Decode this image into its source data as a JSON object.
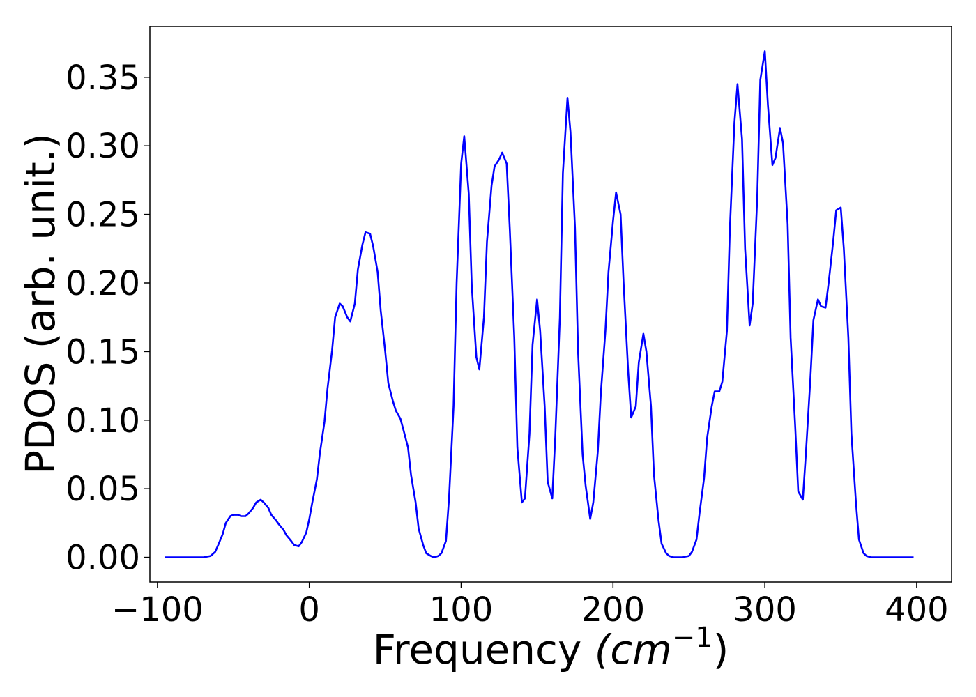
{
  "chart_data": {
    "type": "line",
    "title": "",
    "xlabel": "Frequency",
    "xlabel_unit": "(cm",
    "xlabel_sup": "−1",
    "xlabel_close": ")",
    "ylabel": "PDOS (arb. unit.)",
    "xlim": [
      -105,
      423
    ],
    "ylim": [
      -0.018,
      0.387
    ],
    "xticks": [
      -100,
      0,
      100,
      200,
      300,
      400
    ],
    "xtick_labels": [
      "−100",
      "0",
      "100",
      "200",
      "300",
      "400"
    ],
    "yticks": [
      0.0,
      0.05,
      0.1,
      0.15,
      0.2,
      0.25,
      0.3,
      0.35
    ],
    "ytick_labels": [
      "0.00",
      "0.05",
      "0.10",
      "0.15",
      "0.20",
      "0.25",
      "0.30",
      "0.35"
    ],
    "grid": false,
    "legend": "none",
    "series": [
      {
        "color": "#0000ff",
        "x": [
          -95,
          -70,
          -65,
          -62,
          -60,
          -57,
          -55,
          -52,
          -50,
          -47,
          -45,
          -42,
          -40,
          -37,
          -35,
          -32,
          -30,
          -27,
          -25,
          -22,
          -20,
          -17,
          -15,
          -12,
          -10,
          -7,
          -5,
          -2,
          0,
          2,
          5,
          7,
          10,
          12,
          15,
          17,
          20,
          22,
          25,
          27,
          30,
          32,
          35,
          37,
          40,
          42,
          45,
          47,
          50,
          52,
          55,
          57,
          60,
          62,
          65,
          67,
          70,
          72,
          75,
          77,
          80,
          82,
          85,
          87,
          90,
          92,
          95,
          97,
          100,
          102,
          105,
          107,
          110,
          112,
          115,
          117,
          120,
          122,
          125,
          127,
          130,
          132,
          135,
          137,
          140,
          142,
          145,
          147,
          150,
          152,
          155,
          157,
          160,
          162,
          165,
          167,
          170,
          172,
          175,
          177,
          180,
          182,
          185,
          187,
          190,
          192,
          195,
          197,
          200,
          202,
          205,
          207,
          210,
          212,
          215,
          217,
          220,
          222,
          225,
          227,
          230,
          232,
          235,
          237,
          240,
          245,
          250,
          252,
          255,
          257,
          260,
          262,
          265,
          267,
          270,
          272,
          275,
          277,
          280,
          282,
          285,
          287,
          290,
          292,
          295,
          297,
          300,
          302,
          305,
          307,
          310,
          312,
          315,
          317,
          320,
          322,
          325,
          327,
          330,
          332,
          335,
          337,
          340,
          342,
          345,
          347,
          350,
          352,
          355,
          357,
          360,
          362,
          365,
          367,
          370,
          380,
          398
        ],
        "y": [
          0.0,
          0.0,
          0.001,
          0.004,
          0.009,
          0.017,
          0.025,
          0.03,
          0.031,
          0.031,
          0.03,
          0.03,
          0.032,
          0.036,
          0.04,
          0.042,
          0.04,
          0.036,
          0.031,
          0.027,
          0.024,
          0.02,
          0.016,
          0.012,
          0.009,
          0.008,
          0.011,
          0.018,
          0.028,
          0.04,
          0.057,
          0.076,
          0.099,
          0.123,
          0.151,
          0.175,
          0.185,
          0.183,
          0.175,
          0.172,
          0.185,
          0.21,
          0.228,
          0.237,
          0.236,
          0.227,
          0.208,
          0.18,
          0.15,
          0.127,
          0.114,
          0.107,
          0.101,
          0.093,
          0.08,
          0.06,
          0.04,
          0.021,
          0.009,
          0.003,
          0.001,
          0.0,
          0.001,
          0.003,
          0.012,
          0.043,
          0.11,
          0.2,
          0.287,
          0.307,
          0.265,
          0.198,
          0.146,
          0.137,
          0.175,
          0.23,
          0.271,
          0.285,
          0.29,
          0.295,
          0.287,
          0.24,
          0.16,
          0.08,
          0.04,
          0.043,
          0.09,
          0.155,
          0.188,
          0.165,
          0.11,
          0.055,
          0.043,
          0.088,
          0.175,
          0.28,
          0.335,
          0.31,
          0.24,
          0.15,
          0.075,
          0.052,
          0.028,
          0.04,
          0.077,
          0.12,
          0.165,
          0.208,
          0.245,
          0.266,
          0.25,
          0.2,
          0.135,
          0.102,
          0.11,
          0.142,
          0.163,
          0.15,
          0.11,
          0.06,
          0.027,
          0.01,
          0.003,
          0.001,
          0.0,
          0.0,
          0.001,
          0.004,
          0.013,
          0.032,
          0.058,
          0.087,
          0.11,
          0.121,
          0.121,
          0.128,
          0.165,
          0.24,
          0.317,
          0.345,
          0.305,
          0.225,
          0.169,
          0.185,
          0.262,
          0.348,
          0.369,
          0.33,
          0.286,
          0.291,
          0.313,
          0.302,
          0.243,
          0.16,
          0.095,
          0.048,
          0.042,
          0.075,
          0.13,
          0.173,
          0.188,
          0.183,
          0.182,
          0.2,
          0.23,
          0.253,
          0.255,
          0.225,
          0.16,
          0.09,
          0.04,
          0.013,
          0.003,
          0.001,
          0.0,
          0.0,
          0.0
        ]
      }
    ]
  }
}
